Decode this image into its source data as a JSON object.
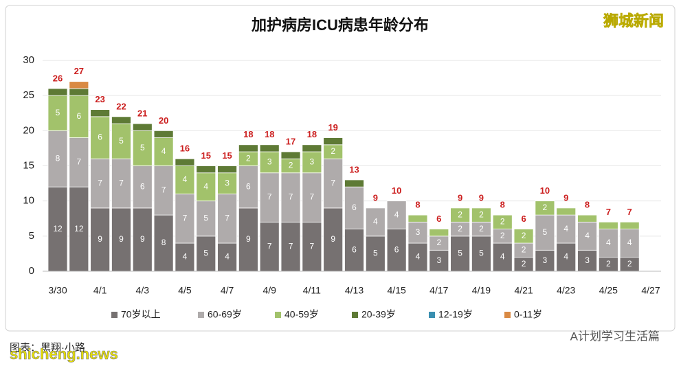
{
  "chart_data": {
    "type": "stacked_bar",
    "title": "加护病房ICU病患年龄分布",
    "categories": [
      "3/30",
      null,
      "4/1",
      null,
      "4/3",
      null,
      "4/5",
      null,
      "4/7",
      null,
      "4/9",
      null,
      "4/11",
      null,
      "4/13",
      null,
      "4/15",
      null,
      "4/17",
      null,
      "4/19",
      null,
      "4/21",
      null,
      "4/23",
      null,
      "4/25",
      null,
      "4/27"
    ],
    "series": [
      {
        "name": "70岁以上",
        "color": "#767171",
        "values": [
          12,
          12,
          9,
          9,
          9,
          8,
          4,
          5,
          4,
          9,
          7,
          7,
          7,
          9,
          6,
          5,
          6,
          4,
          3,
          5,
          5,
          4,
          2,
          3,
          4,
          3,
          2,
          2,
          null
        ]
      },
      {
        "name": "60-69岁",
        "color": "#afabab",
        "values": [
          8,
          7,
          7,
          7,
          6,
          7,
          7,
          5,
          7,
          6,
          7,
          7,
          7,
          7,
          6,
          4,
          4,
          3,
          2,
          2,
          2,
          2,
          2,
          5,
          4,
          4,
          4,
          4,
          null
        ]
      },
      {
        "name": "40-59岁",
        "color": "#a2c26b",
        "values": [
          5,
          6,
          6,
          5,
          5,
          4,
          4,
          4,
          3,
          2,
          3,
          2,
          3,
          2,
          0,
          0,
          0,
          1,
          1,
          2,
          2,
          2,
          2,
          2,
          1,
          1,
          1,
          1,
          null
        ]
      },
      {
        "name": "20-39岁",
        "color": "#5e7a35",
        "values": [
          1,
          1,
          1,
          1,
          1,
          1,
          1,
          1,
          1,
          1,
          1,
          1,
          1,
          1,
          1,
          0,
          0,
          0,
          0,
          0,
          0,
          0,
          0,
          0,
          0,
          0,
          0,
          0,
          null
        ]
      },
      {
        "name": "12-19岁",
        "color": "#3a8fb0",
        "values": [
          0,
          0,
          0,
          0,
          0,
          0,
          0,
          0,
          0,
          0,
          0,
          0,
          0,
          0,
          0,
          0,
          0,
          0,
          0,
          0,
          0,
          0,
          0,
          0,
          0,
          0,
          0,
          0,
          null
        ]
      },
      {
        "name": "0-11岁",
        "color": "#d98a44",
        "values": [
          0,
          1,
          0,
          0,
          0,
          0,
          0,
          0,
          0,
          0,
          0,
          0,
          0,
          0,
          0,
          0,
          0,
          0,
          0,
          0,
          0,
          0,
          0,
          0,
          0,
          0,
          0,
          0,
          null
        ]
      }
    ],
    "totals": [
      26,
      27,
      23,
      22,
      21,
      20,
      16,
      15,
      15,
      18,
      18,
      17,
      18,
      19,
      13,
      9,
      10,
      8,
      6,
      9,
      9,
      8,
      6,
      10,
      9,
      8,
      7,
      7,
      null
    ],
    "ylim": [
      0,
      30
    ],
    "yticks": [
      0,
      5,
      10,
      15,
      20,
      25,
      30
    ],
    "grid": true,
    "legend": "bottom",
    "watermark": "狮城新闻",
    "source": "图表：黑翔·小路",
    "footer_account": "A计划学习生活篇",
    "site": "shicheng.news"
  }
}
